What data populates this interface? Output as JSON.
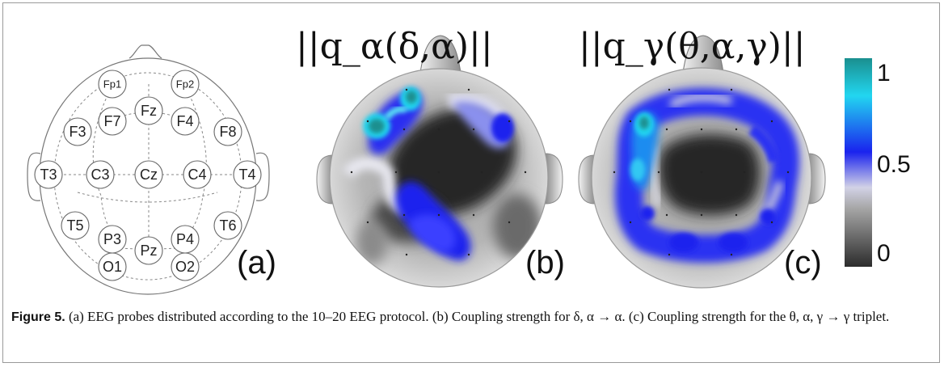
{
  "panel_labels": [
    "(a)",
    "(b)",
    "(c)"
  ],
  "panel_a": {
    "electrodes": [
      "Fp1",
      "Fp2",
      "F7",
      "Fz",
      "F4",
      "F3",
      "F8",
      "T3",
      "C3",
      "Cz",
      "C4",
      "T4",
      "T5",
      "T6",
      "P3",
      "Pz",
      "P4",
      "O1",
      "O2"
    ]
  },
  "panel_b": {
    "title": "||q_α(δ,α)||"
  },
  "panel_c": {
    "title": "||q_γ(θ,α,γ)||"
  },
  "colorbar": {
    "ticks": [
      "1",
      "0.5",
      "0"
    ],
    "colors": {
      "high": "#1a8f8f",
      "cyan": "#22d6f0",
      "blue": "#1a22ee",
      "light": "#d2d2e6",
      "mid": "#9c9c9c",
      "low": "#2c2c2c"
    }
  },
  "caption": {
    "label": "Figure 5.",
    "text": "(a) EEG probes distributed according to the 10–20 EEG protocol. (b) Coupling strength for δ, α → α. (c) Coupling strength for the θ, α, γ → γ triplet."
  }
}
